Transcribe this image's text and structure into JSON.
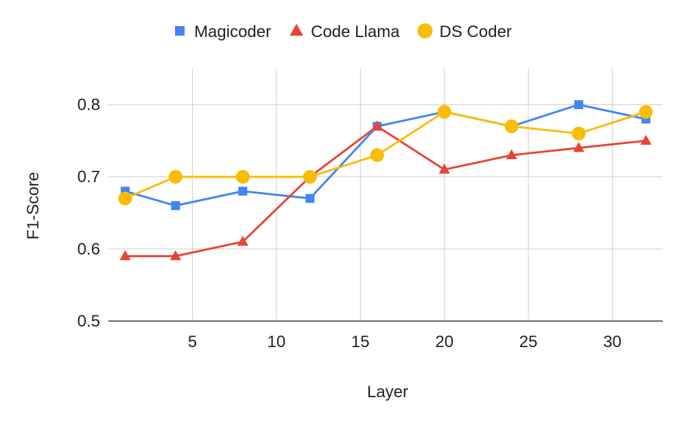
{
  "chart_data": {
    "type": "line",
    "title": "",
    "xlabel": "Layer",
    "ylabel": "F1-Score",
    "xlim": [
      0,
      33
    ],
    "ylim": [
      0.5,
      0.85
    ],
    "x_ticks": [
      5,
      10,
      15,
      20,
      25,
      30
    ],
    "y_ticks": [
      0.5,
      0.6,
      0.7,
      0.8
    ],
    "x_tick_labels": [
      "5",
      "10",
      "15",
      "20",
      "25",
      "30"
    ],
    "y_tick_labels": [
      "0.5",
      "0.6",
      "0.7",
      "0.8"
    ],
    "grid": true,
    "legend_position": "top",
    "x": [
      1,
      4,
      8,
      12,
      16,
      20,
      24,
      28,
      32
    ],
    "series": [
      {
        "name": "Magicoder",
        "color": "#4285F4",
        "marker": "square",
        "values": [
          0.68,
          0.66,
          0.68,
          0.67,
          0.77,
          0.79,
          0.77,
          0.8,
          0.78
        ]
      },
      {
        "name": "Code Llama",
        "color": "#EA4335",
        "marker": "triangle",
        "values": [
          0.59,
          0.59,
          0.61,
          0.7,
          0.77,
          0.71,
          0.73,
          0.74,
          0.75
        ]
      },
      {
        "name": "DS Coder",
        "color": "#FBBC04",
        "marker": "circle",
        "values": [
          0.67,
          0.7,
          0.7,
          0.7,
          0.73,
          0.79,
          0.77,
          0.76,
          0.79
        ]
      }
    ]
  }
}
